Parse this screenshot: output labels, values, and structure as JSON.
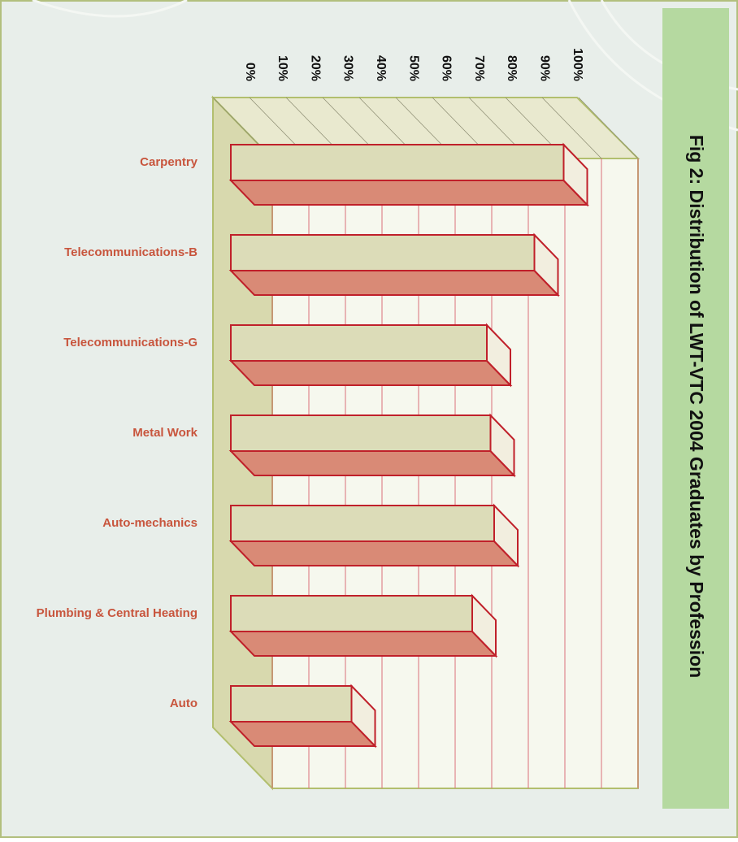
{
  "chart_data": {
    "type": "bar3d",
    "orientation": "horizontal",
    "title": "Fig 2: Distribution of LWT-VTC 2004 Graduates by Profession",
    "categories": [
      "Carpentry",
      "Telecommunications-B",
      "Telecommunications-G",
      "Metal Work",
      "Auto-mechanics",
      "Plumbing & Central Heating",
      "Auto"
    ],
    "values": [
      91,
      83,
      70,
      71,
      72,
      66,
      33
    ],
    "color": "#dcdcb8",
    "xlim": [
      0,
      100
    ],
    "xticks": [
      {
        "value": 0,
        "label": "0%"
      },
      {
        "value": 10,
        "label": "10%"
      },
      {
        "value": 20,
        "label": "20%"
      },
      {
        "value": 30,
        "label": "30%"
      },
      {
        "value": 40,
        "label": "40%"
      },
      {
        "value": 50,
        "label": "50%"
      },
      {
        "value": 60,
        "label": "60%"
      },
      {
        "value": 70,
        "label": "70%"
      },
      {
        "value": 80,
        "label": "80%"
      },
      {
        "value": 90,
        "label": "90%"
      },
      {
        "value": 100,
        "label": "100%"
      }
    ],
    "grid": true
  }
}
